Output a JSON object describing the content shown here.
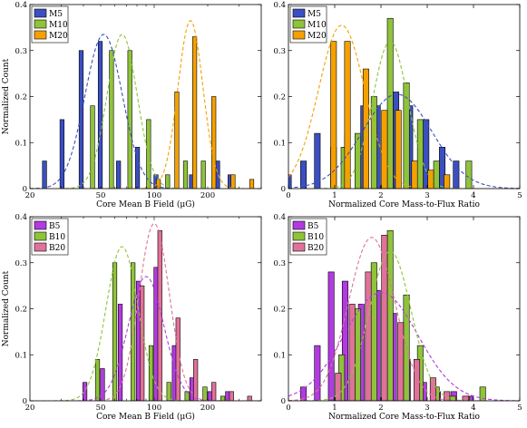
{
  "chart_data": [
    {
      "type": "bar",
      "panel": "top-left",
      "xlabel": "Core Mean B Field (μG)",
      "ylabel": "Normalized Count",
      "xscale": "log",
      "xlim": [
        20,
        400
      ],
      "ylim": [
        0,
        0.4
      ],
      "xticks": [
        "20",
        "50",
        "100",
        "200"
      ],
      "yticks": [
        "0",
        "0.1",
        "0.2",
        "0.3",
        "0.4"
      ],
      "legend_position": "top-left",
      "series": [
        {
          "name": "M5",
          "color": "#3b4fc1",
          "points": [
            [
              25.5,
              0.06
            ],
            [
              32,
              0.15
            ],
            [
              41,
              0.3
            ],
            [
              52.5,
              0.32
            ],
            [
              66.5,
              0.06
            ],
            [
              85,
              0.09
            ],
            [
              108,
              0.03
            ],
            [
              171,
              0.03
            ],
            [
              240,
              0.06
            ],
            [
              282,
              0.03
            ]
          ],
          "fit": {
            "mu": 52,
            "sigma_dex": 0.105,
            "peak": 0.335
          }
        },
        {
          "name": "M10",
          "color": "#8fc33a",
          "points": [
            [
              45,
              0.18
            ],
            [
              57.5,
              0.3
            ],
            [
              73,
              0.3
            ],
            [
              93,
              0.15
            ],
            [
              119,
              0.03
            ],
            [
              150,
              0.06
            ],
            [
              189,
              0.06
            ]
          ],
          "fit": {
            "mu": 66,
            "sigma_dex": 0.085,
            "peak": 0.335
          }
        },
        {
          "name": "M20",
          "color": "#f5a000",
          "points": [
            [
              100,
              0.02
            ],
            [
              127,
              0.21
            ],
            [
              160,
              0.33
            ],
            [
              205,
              0.2
            ],
            [
              263,
              0.03
            ],
            [
              335,
              0.02
            ]
          ],
          "fit": {
            "mu": 160,
            "sigma_dex": 0.07,
            "peak": 0.365
          }
        }
      ]
    },
    {
      "type": "bar",
      "panel": "top-right",
      "xlabel": "Normalized Core Mass-to-Flux Ratio",
      "ylabel": "",
      "xlim": [
        0,
        5
      ],
      "ylim": [
        0,
        0.4
      ],
      "xticks": [
        "0",
        "1",
        "2",
        "3",
        "4",
        "5"
      ],
      "yticks": [
        "0",
        "0.1",
        "0.2",
        "0.3",
        "0.4"
      ],
      "legend_position": "top-left",
      "series": [
        {
          "name": "M5",
          "color": "#3b4fc1",
          "points": [
            [
              0.125,
              0.03
            ],
            [
              0.45,
              0.06
            ],
            [
              0.75,
              0.12
            ],
            [
              1.1,
              0.09
            ],
            [
              1.4,
              0.12
            ],
            [
              1.75,
              0.18
            ],
            [
              2.05,
              0.18
            ],
            [
              2.45,
              0.21
            ],
            [
              2.75,
              0.18
            ],
            [
              3.1,
              0.15
            ],
            [
              3.45,
              0.09
            ],
            [
              3.75,
              0.06
            ]
          ],
          "fit": {
            "mu": 2.35,
            "sigma": 0.75,
            "peak": 0.205
          }
        },
        {
          "name": "M10",
          "color": "#8fc33a",
          "points": [
            [
              1.2,
              0.09
            ],
            [
              1.5,
              0.12
            ],
            [
              1.85,
              0.2
            ],
            [
              2.2,
              0.37
            ],
            [
              2.55,
              0.23
            ],
            [
              2.85,
              0.15
            ],
            [
              3.2,
              0.06
            ],
            [
              3.9,
              0.06
            ]
          ],
          "fit": {
            "mu": 2.2,
            "sigma": 0.38,
            "peak": 0.32
          }
        },
        {
          "name": "M20",
          "color": "#f5a000",
          "points": [
            [
              0.85,
              0.32
            ],
            [
              1.15,
              0.32
            ],
            [
              1.55,
              0.26
            ],
            [
              1.95,
              0.17
            ],
            [
              2.25,
              0.17
            ],
            [
              2.6,
              0.06
            ],
            [
              2.95,
              0.04
            ],
            [
              3.3,
              0.03
            ]
          ],
          "fit": {
            "mu": 1.15,
            "sigma": 0.5,
            "peak": 0.355
          }
        }
      ]
    },
    {
      "type": "bar",
      "panel": "bottom-left",
      "xlabel": "Core Mean B Field (μG)",
      "ylabel": "Normalized Count",
      "xscale": "log",
      "xlim": [
        20,
        400
      ],
      "ylim": [
        0,
        0.4
      ],
      "xticks": [
        "20",
        "50",
        "100",
        "200"
      ],
      "yticks": [
        "0",
        "0.1",
        "0.2",
        "0.3",
        "0.4"
      ],
      "legend_position": "top-left",
      "series": [
        {
          "name": "B5",
          "color": "#b13be0",
          "points": [
            [
              43,
              0.04
            ],
            [
              54,
              0.07
            ],
            [
              68,
              0.21
            ],
            [
              86,
              0.26
            ],
            [
              108,
              0.29
            ],
            [
              137,
              0.12
            ],
            [
              172,
              0.05
            ],
            [
              217,
              0.02
            ],
            [
              273,
              0.02
            ]
          ],
          "fit": {
            "mu": 90,
            "sigma_dex": 0.1,
            "peak": 0.27
          }
        },
        {
          "name": "B10",
          "color": "#8fc33a",
          "points": [
            [
              48,
              0.09
            ],
            [
              60,
              0.3
            ],
            [
              76,
              0.3
            ],
            [
              96,
              0.12
            ],
            [
              121,
              0.04
            ],
            [
              153,
              0.02
            ],
            [
              193,
              0.03
            ],
            [
              243,
              0.01
            ]
          ],
          "fit": {
            "mu": 66,
            "sigma_dex": 0.09,
            "peak": 0.335
          }
        },
        {
          "name": "B20",
          "color": "#e0729a",
          "points": [
            [
              81,
              0.25
            ],
            [
              102,
              0.37
            ],
            [
              129,
              0.18
            ],
            [
              162,
              0.09
            ],
            [
              205,
              0.04
            ],
            [
              258,
              0.02
            ],
            [
              326,
              0.01
            ]
          ],
          "fit": {
            "mu": 100,
            "sigma_dex": 0.085,
            "peak": 0.385
          }
        }
      ]
    },
    {
      "type": "bar",
      "panel": "bottom-right",
      "xlabel": "Normalized Core Mass-to-Flux Ratio",
      "ylabel": "",
      "xlim": [
        0,
        5
      ],
      "ylim": [
        0,
        0.4
      ],
      "xticks": [
        "0",
        "1",
        "2",
        "3",
        "4",
        "5"
      ],
      "yticks": [
        "0",
        "0.1",
        "0.2",
        "0.3",
        "0.4"
      ],
      "legend_position": "top-left",
      "series": [
        {
          "name": "B5",
          "color": "#b13be0",
          "points": [
            [
              0.45,
              0.03
            ],
            [
              0.75,
              0.12
            ],
            [
              1.05,
              0.28
            ],
            [
              1.35,
              0.26
            ],
            [
              1.7,
              0.21
            ],
            [
              2.05,
              0.24
            ],
            [
              2.4,
              0.19
            ],
            [
              2.7,
              0.09
            ],
            [
              3.05,
              0.04
            ],
            [
              3.35,
              0.02
            ],
            [
              3.7,
              0.02
            ],
            [
              4.05,
              0.01
            ]
          ],
          "fit": {
            "mu": 2.0,
            "sigma": 0.8,
            "peak": 0.235
          }
        },
        {
          "name": "B10",
          "color": "#8fc33a",
          "points": [
            [
              1.15,
              0.1
            ],
            [
              1.5,
              0.2
            ],
            [
              1.85,
              0.3
            ],
            [
              2.2,
              0.37
            ],
            [
              2.55,
              0.23
            ],
            [
              2.85,
              0.12
            ],
            [
              3.2,
              0.03
            ],
            [
              3.55,
              0.01
            ],
            [
              3.85,
              0.01
            ],
            [
              4.2,
              0.03
            ]
          ],
          "fit": {
            "mu": 2.2,
            "sigma": 0.45,
            "peak": 0.325
          }
        },
        {
          "name": "B20",
          "color": "#e0729a",
          "points": [
            [
              0.95,
              0.06
            ],
            [
              1.25,
              0.21
            ],
            [
              1.6,
              0.28
            ],
            [
              1.95,
              0.36
            ],
            [
              2.3,
              0.17
            ],
            [
              2.65,
              0.09
            ],
            [
              3.0,
              0.05
            ],
            [
              3.3,
              0.02
            ],
            [
              3.7,
              0.01
            ]
          ],
          "fit": {
            "mu": 1.8,
            "sigma": 0.5,
            "peak": 0.355
          }
        }
      ]
    }
  ]
}
